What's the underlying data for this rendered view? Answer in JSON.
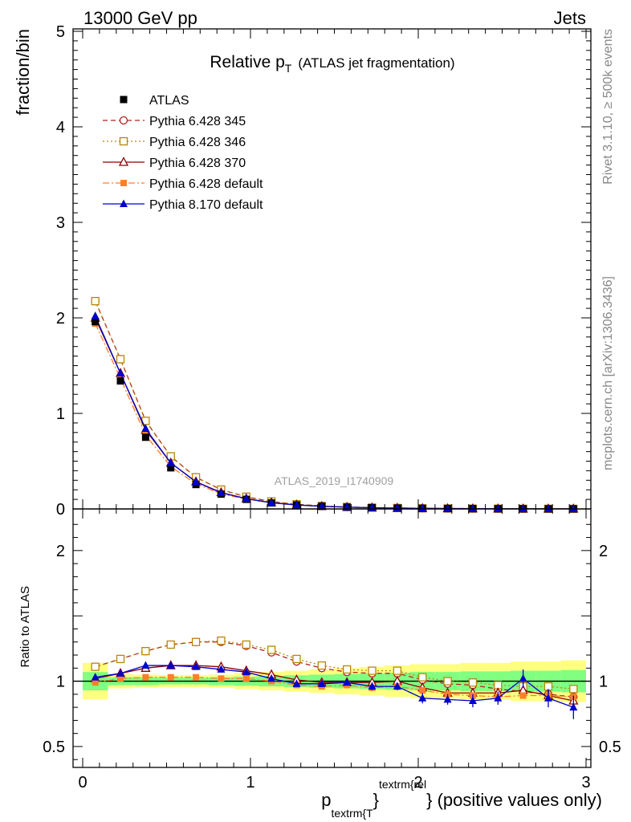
{
  "header": {
    "left": "13000 GeV pp",
    "right": "Jets"
  },
  "side_labels": {
    "rivet": "Rivet 3.1.10, ≥ 500k events",
    "mcplots": "mcplots.cern.ch [arXiv:1306.3436]"
  },
  "watermark": "ATLAS_2019_I1740909",
  "chart_data": {
    "type": "line",
    "title": {
      "main": "Relative p",
      "sub": "T",
      "rest": "(ATLAS jet fragmentation)"
    },
    "ylabel": "fraction/bin",
    "ratio_ylabel": "Ratio to ATLAS",
    "xlabel": {
      "p": "p",
      "sub": "textrm{T",
      "brace": "}",
      "sup": "textrm{rel",
      "rest": "} (positive values only)"
    },
    "xlim": [
      0,
      3
    ],
    "ylim": [
      0,
      5
    ],
    "ratio_ylim": [
      0.34,
      2.3
    ],
    "x_ticks": [
      "0",
      "1",
      "2",
      "3"
    ],
    "y_ticks": [
      "0",
      "1",
      "2",
      "3",
      "4",
      "5"
    ],
    "ratio_ticks": [
      "0.5",
      "1",
      "2"
    ],
    "legend_position": "top-left",
    "x": [
      0.075,
      0.225,
      0.375,
      0.525,
      0.675,
      0.825,
      0.975,
      1.125,
      1.275,
      1.425,
      1.575,
      1.725,
      1.875,
      2.025,
      2.175,
      2.325,
      2.475,
      2.625,
      2.775,
      2.925
    ],
    "reference": {
      "name": "ATLAS",
      "values": [
        1.96,
        1.34,
        0.75,
        0.43,
        0.255,
        0.155,
        0.1,
        0.063,
        0.042,
        0.028,
        0.019,
        0.013,
        0.009,
        0.0065,
        0.0047,
        0.0034,
        0.0025,
        0.0018,
        0.0014,
        0.0011
      ],
      "band_green": [
        0.07,
        0.03,
        0.03,
        0.025,
        0.025,
        0.03,
        0.035,
        0.04,
        0.045,
        0.05,
        0.055,
        0.06,
        0.065,
        0.07,
        0.07,
        0.075,
        0.075,
        0.08,
        0.08,
        0.085
      ],
      "band_yellow": [
        0.14,
        0.055,
        0.05,
        0.045,
        0.045,
        0.05,
        0.06,
        0.07,
        0.08,
        0.09,
        0.1,
        0.11,
        0.12,
        0.13,
        0.13,
        0.14,
        0.14,
        0.15,
        0.15,
        0.16
      ]
    },
    "series": [
      {
        "name": "Pythia 6.428 345",
        "color": "#b22222",
        "marker": "open-circle",
        "dash": "6,4",
        "ratio": [
          1.11,
          1.17,
          1.23,
          1.28,
          1.3,
          1.3,
          1.27,
          1.22,
          1.15,
          1.1,
          1.07,
          1.06,
          1.06,
          1.01,
          0.98,
          0.97,
          0.94,
          0.92,
          0.9,
          0.88
        ]
      },
      {
        "name": "Pythia 6.428 346",
        "color": "#b8860b",
        "marker": "open-square",
        "dash": "2,3",
        "ratio": [
          1.11,
          1.17,
          1.23,
          1.28,
          1.3,
          1.31,
          1.28,
          1.24,
          1.17,
          1.12,
          1.09,
          1.08,
          1.08,
          1.03,
          1.0,
          0.99,
          0.97,
          0.96,
          0.96,
          0.94
        ]
      },
      {
        "name": "Pythia 6.428 370",
        "color": "#8b0000",
        "marker": "open-triangle",
        "dash": "",
        "ratio": [
          1.02,
          1.06,
          1.1,
          1.12,
          1.12,
          1.11,
          1.08,
          1.05,
          1.01,
          0.99,
          0.99,
          0.99,
          1.0,
          0.95,
          0.91,
          0.91,
          0.91,
          0.93,
          0.89,
          0.85
        ]
      },
      {
        "name": "Pythia 6.428 default",
        "color": "#ff7f27",
        "marker": "filled-square",
        "dash": "8,3,2,3",
        "ratio": [
          0.99,
          1.02,
          1.03,
          1.03,
          1.03,
          1.02,
          1.02,
          1.0,
          0.97,
          0.96,
          0.97,
          0.95,
          0.96,
          0.93,
          0.9,
          0.89,
          0.88,
          0.89,
          0.89,
          0.88
        ]
      },
      {
        "name": "Pythia 8.170 default",
        "color": "#0000cd",
        "marker": "filled-triangle",
        "dash": "",
        "ratio": [
          1.03,
          1.06,
          1.12,
          1.12,
          1.11,
          1.09,
          1.07,
          1.02,
          0.98,
          0.98,
          0.99,
          0.96,
          0.96,
          0.87,
          0.86,
          0.85,
          0.87,
          1.02,
          0.87,
          0.8
        ],
        "ratio_err": [
          0.01,
          0.01,
          0.01,
          0.01,
          0.01,
          0.01,
          0.01,
          0.02,
          0.02,
          0.02,
          0.02,
          0.03,
          0.03,
          0.04,
          0.04,
          0.05,
          0.05,
          0.07,
          0.07,
          0.09
        ]
      }
    ]
  }
}
